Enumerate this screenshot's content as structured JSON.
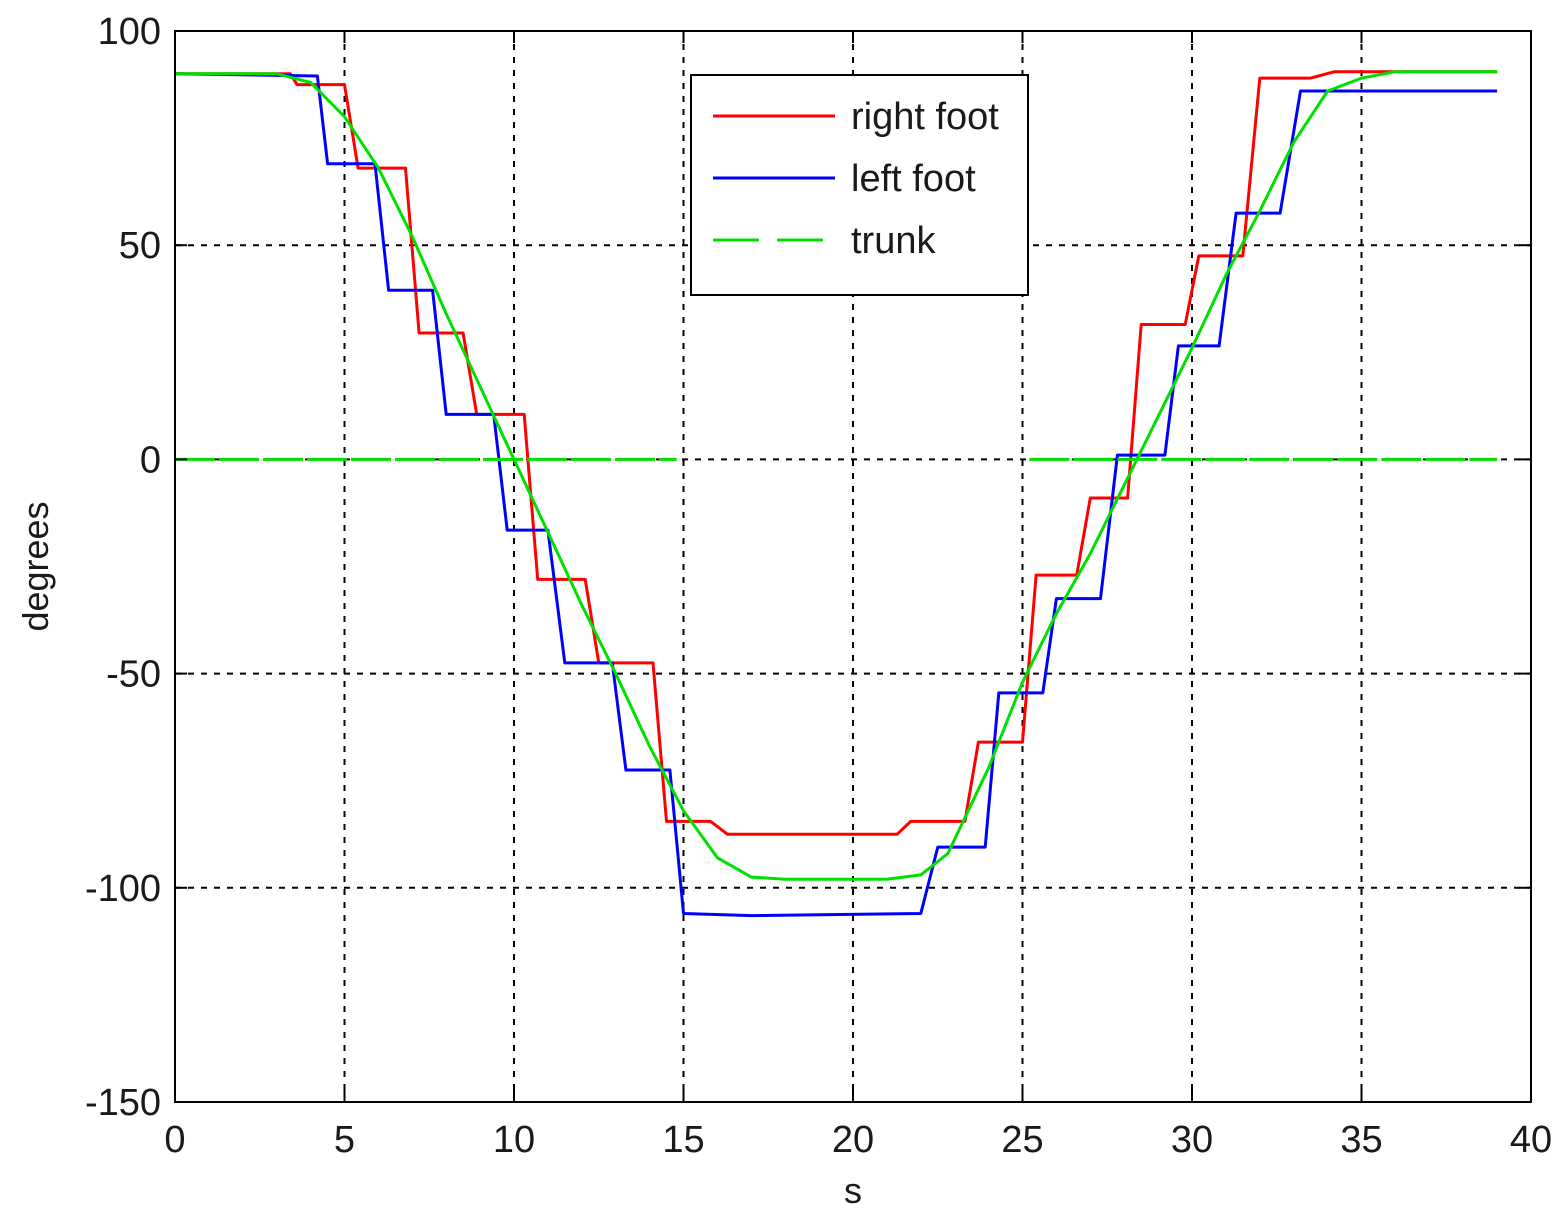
{
  "chart_data": {
    "type": "line",
    "title": "",
    "xlabel": "s",
    "ylabel": "degrees",
    "xlim": [
      0,
      40
    ],
    "ylim": [
      -150,
      100
    ],
    "x_ticks": [
      0,
      5,
      10,
      15,
      20,
      25,
      30,
      35,
      40
    ],
    "y_ticks": [
      100,
      50,
      0,
      -50,
      -100,
      -150
    ],
    "grid": true,
    "legend_position": "top-center",
    "series": [
      {
        "name": "right foot",
        "color": "#ff0000",
        "style": "solid",
        "points": [
          [
            0,
            90
          ],
          [
            3.4,
            90
          ],
          [
            3.6,
            87.5
          ],
          [
            5.0,
            87.5
          ],
          [
            5.4,
            68
          ],
          [
            6.8,
            68
          ],
          [
            7.2,
            29.5
          ],
          [
            8.5,
            29.5
          ],
          [
            8.9,
            10.5
          ],
          [
            10.3,
            10.5
          ],
          [
            10.7,
            -28
          ],
          [
            12.1,
            -28
          ],
          [
            12.5,
            -47.5
          ],
          [
            14.1,
            -47.5
          ],
          [
            14.5,
            -84.5
          ],
          [
            15.8,
            -84.5
          ],
          [
            16.3,
            -87.5
          ],
          [
            21.3,
            -87.5
          ],
          [
            21.7,
            -84.5
          ],
          [
            23.3,
            -84.5
          ],
          [
            23.7,
            -66
          ],
          [
            25.0,
            -66
          ],
          [
            25.4,
            -27
          ],
          [
            26.6,
            -27
          ],
          [
            27.0,
            -9
          ],
          [
            28.1,
            -9
          ],
          [
            28.5,
            31.5
          ],
          [
            29.8,
            31.5
          ],
          [
            30.2,
            47.5
          ],
          [
            31.5,
            47.5
          ],
          [
            32.0,
            89
          ],
          [
            33.5,
            89
          ],
          [
            34.2,
            90.5
          ],
          [
            39,
            90.5
          ]
        ]
      },
      {
        "name": "left foot",
        "color": "#0000ff",
        "style": "solid",
        "points": [
          [
            0,
            90
          ],
          [
            4.2,
            89.5
          ],
          [
            4.5,
            69
          ],
          [
            5.9,
            69
          ],
          [
            6.3,
            39.5
          ],
          [
            7.6,
            39.5
          ],
          [
            8.0,
            10.5
          ],
          [
            9.4,
            10.5
          ],
          [
            9.8,
            -16.5
          ],
          [
            11.0,
            -16.5
          ],
          [
            11.5,
            -47.5
          ],
          [
            12.9,
            -47.5
          ],
          [
            13.3,
            -72.5
          ],
          [
            14.6,
            -72.5
          ],
          [
            15.0,
            -106
          ],
          [
            17.0,
            -106.5
          ],
          [
            22.0,
            -106
          ],
          [
            22.5,
            -90.5
          ],
          [
            23.9,
            -90.5
          ],
          [
            24.3,
            -54.5
          ],
          [
            25.6,
            -54.5
          ],
          [
            26.0,
            -32.5
          ],
          [
            27.3,
            -32.5
          ],
          [
            27.8,
            1
          ],
          [
            29.2,
            1
          ],
          [
            29.6,
            26.5
          ],
          [
            30.8,
            26.5
          ],
          [
            31.3,
            57.5
          ],
          [
            32.6,
            57.5
          ],
          [
            33.2,
            86
          ],
          [
            39,
            86
          ]
        ]
      },
      {
        "name": "trunk",
        "color": "#00e000",
        "style": "dashed",
        "points": [
          [
            0,
            90
          ],
          [
            3,
            90
          ],
          [
            4,
            88
          ],
          [
            5,
            80
          ],
          [
            6,
            68
          ],
          [
            7,
            52
          ],
          [
            8,
            34
          ],
          [
            9,
            17
          ],
          [
            10,
            0
          ],
          [
            11,
            -17
          ],
          [
            12,
            -34
          ],
          [
            13,
            -50
          ],
          [
            14,
            -67
          ],
          [
            15,
            -82
          ],
          [
            16,
            -93
          ],
          [
            17,
            -97.5
          ],
          [
            18,
            -98
          ],
          [
            21,
            -98
          ],
          [
            22,
            -97
          ],
          [
            22.8,
            -92
          ],
          [
            24,
            -72
          ],
          [
            25,
            -52
          ],
          [
            26,
            -36
          ],
          [
            27,
            -22
          ],
          [
            28,
            -6
          ],
          [
            29,
            10
          ],
          [
            30,
            26
          ],
          [
            31,
            43
          ],
          [
            32,
            58
          ],
          [
            33,
            74
          ],
          [
            34,
            86
          ],
          [
            35,
            89
          ],
          [
            36,
            90.5
          ],
          [
            39,
            90.5
          ]
        ]
      },
      {
        "name": "",
        "color": "#00e000",
        "style": "dashed",
        "points": [
          [
            0,
            0
          ],
          [
            14.8,
            0
          ]
        ]
      },
      {
        "name": "",
        "color": "#00e000",
        "style": "dashed",
        "points": [
          [
            25.2,
            0
          ],
          [
            39,
            0
          ]
        ]
      }
    ]
  }
}
